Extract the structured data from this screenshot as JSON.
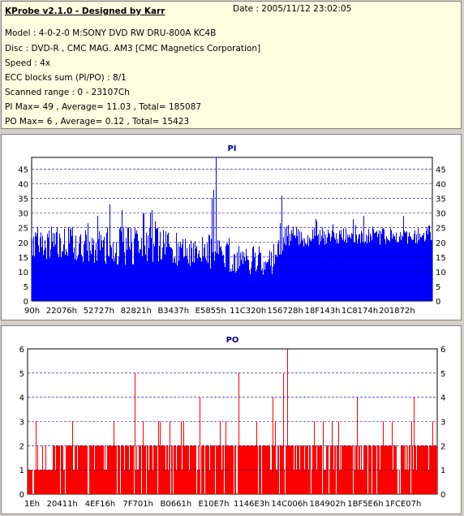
{
  "info": {
    "title": "KProbe v2.1.0 - Designed by Karr",
    "date": "Date : 2005/11/12 23:02:05",
    "model": "Model : 4-0-2-0 M:SONY    DVD RW DRU-800A  KC4B",
    "disc": "Disc : DVD-R , CMC MAG. AM3 [CMC Magnetics Corporation]",
    "speed": "Speed : 4x",
    "ecc": "ECC blocks sum (PI/PO) : 8/1",
    "range": "Scanned range : 0 - 23107Ch",
    "pi_summary": "PI Max= 49 , Average= 11.03 , Total= 185087",
    "po_summary": "PO Max= 6 , Average= 0.12 , Total= 15423"
  },
  "colors": {
    "pi": "#0000ff",
    "po": "#ff0000",
    "grid": "#000080"
  },
  "chart_data": [
    {
      "type": "bar",
      "title": "PI",
      "ylim": [
        0,
        49
      ],
      "yticks": [
        0,
        5,
        10,
        15,
        20,
        25,
        30,
        35,
        40,
        45
      ],
      "xticks": [
        "90h",
        "22076h",
        "52727h",
        "82821h",
        "B3437h",
        "E5855h",
        "11C320h",
        "156728h",
        "18F143h",
        "1C8174h",
        "201872h"
      ],
      "grid": true,
      "profile": [
        {
          "pos": 0.0,
          "avg": 18,
          "spread": 5
        },
        {
          "pos": 0.05,
          "avg": 20,
          "spread": 6
        },
        {
          "pos": 0.15,
          "avg": 19,
          "spread": 6
        },
        {
          "pos": 0.25,
          "avg": 19,
          "spread": 7
        },
        {
          "pos": 0.35,
          "avg": 18,
          "spread": 6
        },
        {
          "pos": 0.45,
          "avg": 17,
          "spread": 6
        },
        {
          "pos": 0.48,
          "avg": 15,
          "spread": 5
        },
        {
          "pos": 0.55,
          "avg": 14,
          "spread": 5
        },
        {
          "pos": 0.6,
          "avg": 14,
          "spread": 5
        },
        {
          "pos": 0.62,
          "avg": 19,
          "spread": 4
        },
        {
          "pos": 0.63,
          "avg": 22,
          "spread": 4
        },
        {
          "pos": 0.75,
          "avg": 22,
          "spread": 3
        },
        {
          "pos": 0.9,
          "avg": 22,
          "spread": 3
        },
        {
          "pos": 1.0,
          "avg": 23,
          "spread": 3
        }
      ],
      "spikes": [
        {
          "pos": 0.46,
          "value": 49
        },
        {
          "pos": 0.455,
          "value": 38
        },
        {
          "pos": 0.45,
          "value": 35
        },
        {
          "pos": 0.625,
          "value": 36
        },
        {
          "pos": 0.165,
          "value": 29
        },
        {
          "pos": 0.195,
          "value": 33
        },
        {
          "pos": 0.225,
          "value": 31
        },
        {
          "pos": 0.28,
          "value": 30
        },
        {
          "pos": 0.3,
          "value": 31
        },
        {
          "pos": 0.71,
          "value": 28
        },
        {
          "pos": 0.83,
          "value": 29
        },
        {
          "pos": 0.93,
          "value": 29
        }
      ]
    },
    {
      "type": "bar",
      "title": "PO",
      "ylim": [
        0,
        6
      ],
      "yticks": [
        0,
        1,
        2,
        3,
        4,
        5,
        6
      ],
      "xticks": [
        "1Eh",
        "20411h",
        "4EF16h",
        "7F701h",
        "B0661h",
        "E10E7h",
        "1146E3h",
        "14C006h",
        "184902h",
        "1BF5E6h",
        "1FCE07h"
      ],
      "grid": true,
      "profile": [
        {
          "pos": 0.0,
          "level": 1
        },
        {
          "pos": 0.1,
          "level": 2
        },
        {
          "pos": 0.2,
          "level": 2
        },
        {
          "pos": 0.5,
          "level": 2
        },
        {
          "pos": 0.6,
          "level": 2
        },
        {
          "pos": 1.0,
          "level": 2
        }
      ],
      "spikes": [
        {
          "pos": 0.635,
          "value": 6
        },
        {
          "pos": 0.262,
          "value": 5
        },
        {
          "pos": 0.515,
          "value": 5
        },
        {
          "pos": 0.625,
          "value": 5
        },
        {
          "pos": 0.42,
          "value": 4
        },
        {
          "pos": 0.6,
          "value": 4
        },
        {
          "pos": 0.805,
          "value": 4
        },
        {
          "pos": 0.945,
          "value": 4
        },
        {
          "pos": 0.02,
          "value": 3
        },
        {
          "pos": 0.11,
          "value": 3
        },
        {
          "pos": 0.21,
          "value": 3
        },
        {
          "pos": 0.32,
          "value": 3
        },
        {
          "pos": 0.38,
          "value": 3
        },
        {
          "pos": 0.47,
          "value": 3
        },
        {
          "pos": 0.56,
          "value": 3
        },
        {
          "pos": 0.7,
          "value": 3
        },
        {
          "pos": 0.76,
          "value": 3
        },
        {
          "pos": 0.87,
          "value": 3
        },
        {
          "pos": 0.99,
          "value": 3
        }
      ]
    }
  ]
}
